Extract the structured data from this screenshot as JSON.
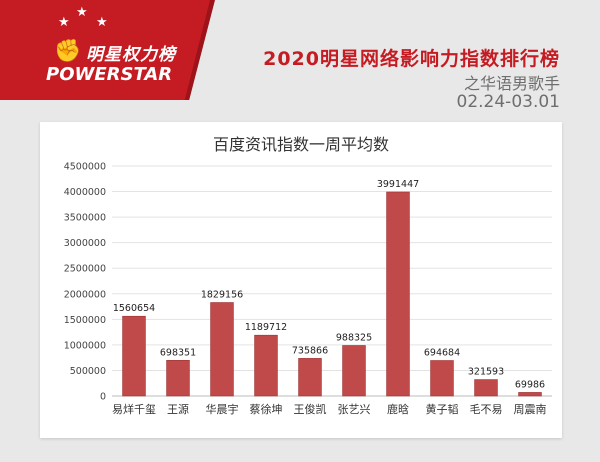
{
  "header": {
    "logo_cn": "明星权力榜",
    "logo_en": "POWERSTAR",
    "title": "2020明星网络影响力指数排行榜",
    "subtitle": "之华语男歌手",
    "date_range": "02.24-03.01"
  },
  "colors": {
    "brand": "#c51b22",
    "bar": "#c0494a",
    "bar_stroke": "#9e3535"
  },
  "chart_data": {
    "type": "bar",
    "title": "百度资讯指数一周平均数",
    "xlabel": "",
    "ylabel": "",
    "categories": [
      "易烊千玺",
      "王源",
      "华晨宇",
      "蔡徐坤",
      "王俊凯",
      "张艺兴",
      "鹿晗",
      "黄子韬",
      "毛不易",
      "周震南"
    ],
    "values": [
      1560654,
      698351,
      1829156,
      1189712,
      735866,
      988325,
      3991447,
      694684,
      321593,
      69986
    ],
    "ylim": [
      0,
      4500000
    ],
    "yticks": [
      "0",
      "500000",
      "1000000",
      "1500000",
      "2000000",
      "2500000",
      "3000000",
      "3500000",
      "4000000",
      "4500000"
    ],
    "grid": true,
    "legend": "none"
  }
}
